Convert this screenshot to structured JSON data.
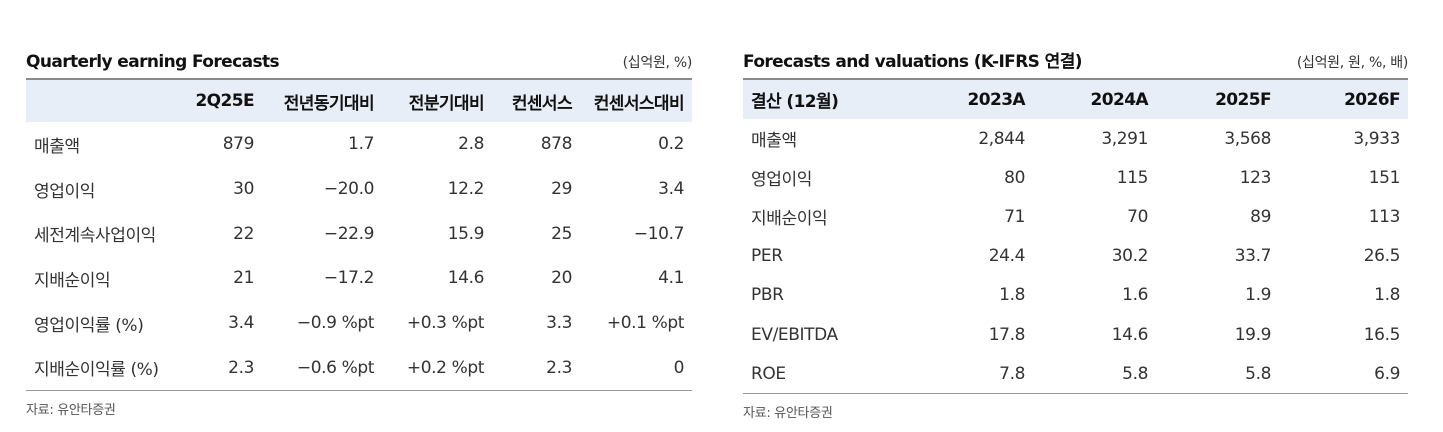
{
  "left": {
    "title": "Quarterly earning Forecasts",
    "unit": "(십억원, %)",
    "headers": [
      "",
      "2Q25E",
      "전년동기대비",
      "전분기대비",
      "컨센서스",
      "컨센서스대비"
    ],
    "rows": [
      [
        "매출액",
        "879",
        "1.7",
        "2.8",
        "878",
        "0.2"
      ],
      [
        "영업이익",
        "30",
        "−20.0",
        "12.2",
        "29",
        "3.4"
      ],
      [
        "세전계속사업이익",
        "22",
        "−22.9",
        "15.9",
        "25",
        "−10.7"
      ],
      [
        "지배순이익",
        "21",
        "−17.2",
        "14.6",
        "20",
        "4.1"
      ],
      [
        "영업이익률 (%)",
        "3.4",
        "−0.9 %pt",
        "+0.3 %pt",
        "3.3",
        "+0.1 %pt"
      ],
      [
        "지배순이익률 (%)",
        "2.3",
        "−0.6 %pt",
        "+0.2 %pt",
        "2.3",
        "0"
      ]
    ],
    "source": "자료: 유안타증권"
  },
  "right": {
    "title": "Forecasts and valuations (K-IFRS 연결)",
    "unit": "(십억원, 원, %, 배)",
    "headers": [
      "결산 (12월)",
      "2023A",
      "2024A",
      "2025F",
      "2026F"
    ],
    "rows": [
      [
        "매출액",
        "2,844",
        "3,291",
        "3,568",
        "3,933"
      ],
      [
        "영업이익",
        "80",
        "115",
        "123",
        "151"
      ],
      [
        "지배순이익",
        "71",
        "70",
        "89",
        "113"
      ],
      [
        "PER",
        "24.4",
        "30.2",
        "33.7",
        "26.5"
      ],
      [
        "PBR",
        "1.8",
        "1.6",
        "1.9",
        "1.8"
      ],
      [
        "EV/EBITDA",
        "17.8",
        "14.6",
        "19.9",
        "16.5"
      ],
      [
        "ROE",
        "7.8",
        "5.8",
        "5.8",
        "6.9"
      ]
    ],
    "source": "자료: 유안타증권"
  }
}
